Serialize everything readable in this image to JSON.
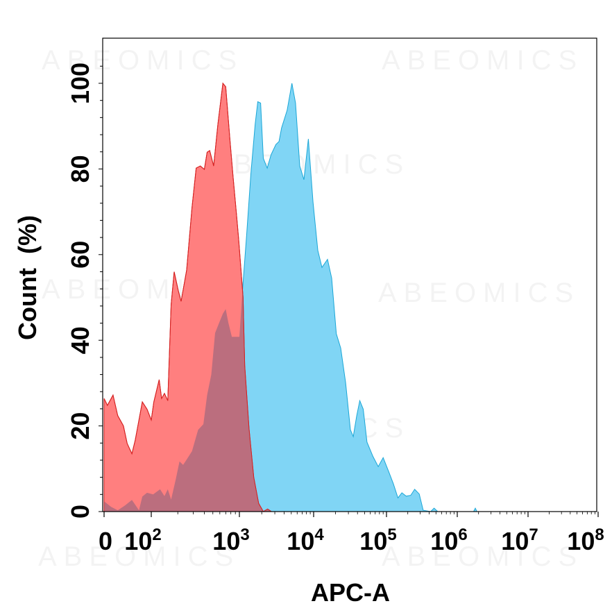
{
  "chart_data": {
    "type": "area",
    "title": "",
    "xlabel": "APC-A",
    "ylabel": "Count  (%)",
    "x_scale": "biexponential",
    "x_ticks": [
      {
        "value": 0,
        "base": "0",
        "exp": ""
      },
      {
        "value": 100,
        "base": "10",
        "exp": "2"
      },
      {
        "value": 1000,
        "base": "10",
        "exp": "3"
      },
      {
        "value": 10000,
        "base": "10",
        "exp": "4"
      },
      {
        "value": 100000,
        "base": "10",
        "exp": "5"
      },
      {
        "value": 1000000,
        "base": "10",
        "exp": "6"
      },
      {
        "value": 10000000,
        "base": "10",
        "exp": "7"
      },
      {
        "value": 100000000,
        "base": "10",
        "exp": "8"
      }
    ],
    "y_ticks": [
      "0",
      "20",
      "40",
      "60",
      "80",
      "100"
    ],
    "ylim": [
      0,
      108
    ],
    "grid": false,
    "watermark": "ABEOMICS",
    "colors": {
      "red": "#ff7f7f",
      "red_line": "#d42020",
      "blue": "#80d5f5",
      "blue_line": "#1aa6d6",
      "overlap": "#bb6e7e"
    },
    "series": [
      {
        "color": "red",
        "points": [
          [
            0,
            26.4
          ],
          [
            7,
            24.8
          ],
          [
            19,
            27.2
          ],
          [
            29,
            22.4
          ],
          [
            41,
            20
          ],
          [
            49,
            15.9
          ],
          [
            59,
            13.5
          ],
          [
            66,
            16.7
          ],
          [
            81,
            25.6
          ],
          [
            91,
            23.9
          ],
          [
            100,
            21.4
          ],
          [
            107,
            25.6
          ],
          [
            123,
            30.8
          ],
          [
            131,
            26.4
          ],
          [
            141,
            27.6
          ],
          [
            154,
            25.9
          ],
          [
            168,
            48.3
          ],
          [
            182,
            56
          ],
          [
            203,
            51.5
          ],
          [
            218,
            49.1
          ],
          [
            252,
            56.4
          ],
          [
            290,
            71
          ],
          [
            323,
            80.2
          ],
          [
            360,
            80.7
          ],
          [
            400,
            79.9
          ],
          [
            430,
            83.9
          ],
          [
            460,
            84.3
          ],
          [
            510,
            80.7
          ],
          [
            570,
            90.4
          ],
          [
            650,
            100
          ],
          [
            700,
            99.2
          ],
          [
            780,
            87
          ],
          [
            850,
            78
          ],
          [
            930,
            69.1
          ],
          [
            980,
            63.7
          ],
          [
            1000,
            61.4
          ],
          [
            1120,
            50
          ],
          [
            1180,
            34
          ],
          [
            1350,
            19.4
          ],
          [
            1560,
            8
          ],
          [
            1820,
            1.9
          ],
          [
            2100,
            0
          ],
          [
            2400,
            0.6
          ],
          [
            2700,
            0
          ]
        ]
      },
      {
        "color": "blue",
        "points": [
          [
            0,
            2.4
          ],
          [
            15,
            1.1
          ],
          [
            29,
            0.3
          ],
          [
            44,
            1.4
          ],
          [
            59,
            2.7
          ],
          [
            74,
            0.3
          ],
          [
            81,
            3.5
          ],
          [
            91,
            4.4
          ],
          [
            105,
            4
          ],
          [
            126,
            5.2
          ],
          [
            141,
            3.6
          ],
          [
            154,
            5.2
          ],
          [
            168,
            2.8
          ],
          [
            190,
            7.6
          ],
          [
            209,
            11.7
          ],
          [
            230,
            10.9
          ],
          [
            253,
            12.2
          ],
          [
            290,
            14.1
          ],
          [
            340,
            19.1
          ],
          [
            390,
            20.4
          ],
          [
            430,
            27.2
          ],
          [
            480,
            32
          ],
          [
            530,
            41.7
          ],
          [
            590,
            44.1
          ],
          [
            650,
            46.2
          ],
          [
            700,
            47.3
          ],
          [
            750,
            44.1
          ],
          [
            820,
            40.8
          ],
          [
            1000,
            40.8
          ],
          [
            1100,
            51.5
          ],
          [
            1250,
            64.5
          ],
          [
            1430,
            79
          ],
          [
            1630,
            90.4
          ],
          [
            1770,
            95.7
          ],
          [
            1930,
            95.4
          ],
          [
            2100,
            82.5
          ],
          [
            2370,
            80.2
          ],
          [
            2670,
            83.3
          ],
          [
            3100,
            85.7
          ],
          [
            3420,
            86.4
          ],
          [
            3700,
            89.6
          ],
          [
            4400,
            93.7
          ],
          [
            5100,
            100
          ],
          [
            5700,
            95.4
          ],
          [
            6500,
            80.7
          ],
          [
            7400,
            77.5
          ],
          [
            8500,
            87
          ],
          [
            9800,
            72.3
          ],
          [
            11400,
            61
          ],
          [
            13000,
            57
          ],
          [
            15500,
            58.9
          ],
          [
            17700,
            54.5
          ],
          [
            20500,
            41.5
          ],
          [
            23500,
            38.2
          ],
          [
            27500,
            30.1
          ],
          [
            32000,
            19.1
          ],
          [
            35000,
            17.5
          ],
          [
            39000,
            22.4
          ],
          [
            43000,
            25.9
          ],
          [
            48000,
            23.9
          ],
          [
            54000,
            16.2
          ],
          [
            65000,
            12.9
          ],
          [
            77000,
            10.5
          ],
          [
            90000,
            12.6
          ],
          [
            110000,
            8.9
          ],
          [
            125000,
            6.5
          ],
          [
            145000,
            3.2
          ],
          [
            165000,
            4.4
          ],
          [
            190000,
            3.6
          ],
          [
            220000,
            3.8
          ],
          [
            250000,
            5.2
          ],
          [
            290000,
            4.1
          ],
          [
            330000,
            0.3
          ],
          [
            420000,
            0
          ],
          [
            470000,
            0.8
          ],
          [
            530000,
            0
          ],
          [
            1700000,
            0
          ],
          [
            1800000,
            0.8
          ],
          [
            1900000,
            0
          ]
        ]
      }
    ]
  }
}
